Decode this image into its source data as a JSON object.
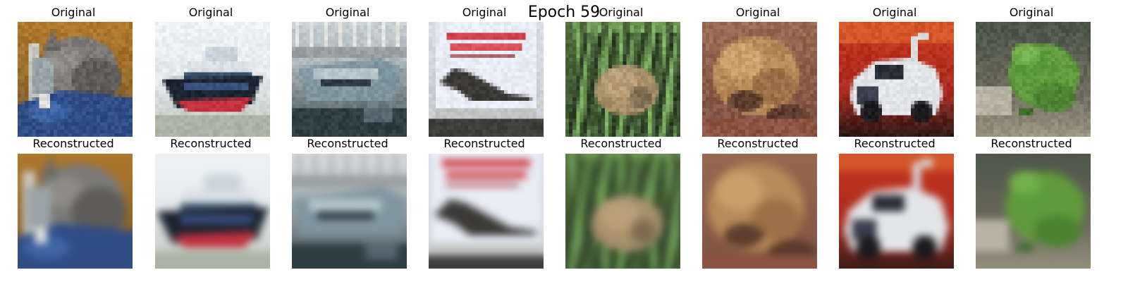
{
  "figure": {
    "title": "Epoch 59"
  },
  "rows": [
    {
      "label": "Original"
    },
    {
      "label": "Reconstructed"
    }
  ],
  "samples": [
    {
      "subject": "cat"
    },
    {
      "subject": "ship"
    },
    {
      "subject": "ship"
    },
    {
      "subject": "airplane"
    },
    {
      "subject": "frog"
    },
    {
      "subject": "frog"
    },
    {
      "subject": "automobile"
    },
    {
      "subject": "frog"
    }
  ]
}
